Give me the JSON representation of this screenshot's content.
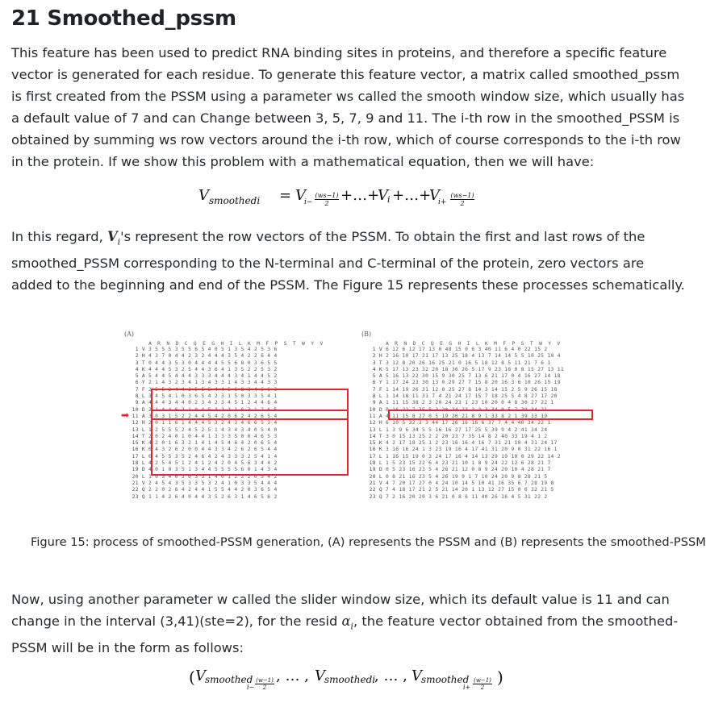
{
  "section": {
    "title": "21 Smoothed_pssm"
  },
  "paragraphs": {
    "p1": "This feature has been used to predict RNA binding sites in proteins, and therefore a specific feature vector is generated for each residue. To generate this feature vector, a matrix called smoothed_pssm is first created from the PSSM using a parameter ws called the smooth window size, which usually has a default value of 7 and can Change between 3, 5, 7, 9 and 11. The i-th row in the smoothed_PSSM is obtained by summing ws row vectors around the i-th row, which of course corresponds to the i-th row in the protein. If we show this problem with a mathematical equation, then we will have:",
    "p2_before": "In this regard, ",
    "p2_var": "V",
    "p2_sub": "i",
    "p2_after": "'s represent the row vectors of the PSSM. To obtain the first and last rows of the smoothed_PSSM corresponding to the N-terminal and C-terminal of the protein, zero vectors are added to the beginning and end of the PSSM. The Figure 15 represents these processes schematically.",
    "p3_before": "Now, using another parameter w called the slider window size, which its default value is 11 and can change in the interval (3,41)(ste=2), for the resid ",
    "p3_var": "α",
    "p3_sub": "i",
    "p3_after": ", the feature vector obtained from the smoothed-PSSM will be in the form as follows:"
  },
  "equation1": {
    "lhs": "V",
    "lhs_sub": "smoothed",
    "lhs_sub_i": "i",
    "eq": "=",
    "term_left": "V",
    "term_left_sub": "i−",
    "frac_num": "(ws−1)",
    "frac_den": "2",
    "dots": "+…+",
    "vi": "V",
    "vi_sub": "i",
    "dots2": "+…+",
    "term_right": "V",
    "term_right_sub": "i+"
  },
  "equation2": {
    "open": "(",
    "v": "V",
    "sub": "smoothed",
    "sub_left": "i−",
    "frac_num": "(w−1)",
    "frac_den": "2",
    "sep": ", … ,",
    "mid_sub": "smoothed",
    "mid_sub_i": "i",
    "sub_right": "i+",
    "close": ")"
  },
  "figure": {
    "label_a": "(A)",
    "label_b": "(B)",
    "caption": "Figure 15: process of smoothed-PSSM generation, (A) represents the PSSM and (B) represents the smoothed-PSSM",
    "header_a": "A R N D C Q E G H I L K M F P S T W Y V",
    "header_b": "A R N D C Q E G H I L K M F P S T W Y V",
    "row_labels": [
      "1 V",
      "2 H",
      "3 T",
      "4 K",
      "5 A",
      "6 Y",
      "7 F",
      "8 L",
      "9 A",
      "10 D",
      "11 A",
      "12 H",
      "13 L",
      "14 T",
      "15 K",
      "16 K",
      "17 L",
      "18 L",
      "19 D",
      "20 L",
      "21 V",
      "22 Q",
      "23 Q"
    ],
    "rows_a": [
      "3 5 5 5 3 5 5 6 5 4 0 5 1 3 5 4 2 5 3 6",
      "4 3 7 0 4 4 2 3 2 4 4 4 3 5 4 2 2 6 4 4",
      "0 4 4 3 5 3 0 4 4 4 4 5 5 6 8 0 3 6 5 5",
      "4 4 4 5 3 2 5 4 4 3 6 4 1 3 5 2 2 5 3 2",
      "5 4 4 5 4 4 4 3 3 3 4 4 4 3 4 1 4 4 5 2",
      "2 1 4 3 2 3 4 1 3 4 3 3 1 4 3 3 4 4 3 3",
      "2 5 5 3 4 4 2 5 5 5 4 4 5 6 8 3 4 6 6 3",
      "3 4 5 4 1 0 3 6 5 4 2 3 1 5 0 3 3 5 4 1",
      "4 4 4 3 4 4 0 2 3 4 2 3 4 5 1 2 4 4 6 4",
      "2 1 4 4 6 2 1 0 4 5 4 2 2 1 6 3 1 2 6 5",
      "3 0 3 1 5 2 2 4 4 5 4 2 0 6 2 4 2 6 5 4",
      "2 0 1 1 6 1 4 4 4 5 3 2 4 3 4 6 6 5 3 4",
      "1 2 5 5 5 2 4 5 2 5 1 4 3 4 3 4 0 5 4 0",
      "2 0 2 4 0 1 0 4 4 1 3 3 3 5 0 0 4 6 5 3",
      "4 2 0 1 6 3 2 1 4 1 4 5 4 6 4 2 0 6 5 4",
      "0 4 3 2 6 2 0 0 4 4 3 3 4 2 6 2 6 5 4 4",
      "0 4 5 5 3 5 2 4 6 4 2 4 3 3 3 2 5 4 1 4",
      "4 2 5 4 5 1 2 4 1 2 4 2 0 4 5 6 3 4 4 2",
      "4 0 1 0 3 5 1 3 4 4 5 5 5 5 6 0 1 4 3 4",
      "1 0 5 4 0 3 0 3 3 1 4 0 1 2 2 2 0 3 4 2",
      "2 4 5 4 3 5 3 3 5 3 2 4 1 0 3 3 5 4 4 4",
      "2 2 0 2 6 4 2 4 4 1 5 5 4 4 2 0 3 6 5 4",
      "1 1 4 2 6 4 0 4 4 3 5 2 6 3 1 4 6 5 6 2"
    ],
    "rows_b": [
      "6 12 6 12 17 13 0 48 15 0 6 3 40 11 6 4 0 22 15 2",
      "2 16 10 17 21 17 13 25 18 4 13 7 14 14 5 5 10 25 10 4",
      "3 12 8 20 26 16 25 21 0 16 5 18 12 8 5 11 21 7 6 1",
      "5 17 13 23 32 20 18 36 26 5 17 9 23 18 0 8 15 27 13 11",
      "5 16 13 22 30 15 9 30 25 7 13 6 21 17 0 4 16 27 14 18",
      "1 17 24 23 30 13 0 29 27 7 15 8 20 16 3 6 10 26 15 19",
      "1 14 19 26 31 12 8 25 27 8 14 3 14 15 2 5 9 26 15 18",
      "1 14 18 11 31 7 4 21 24 17 15 7 18 25 5 4 8 27 17 20",
      "1 11 15 38 2 3 20 24 23 1 23 10 20 0 4 8 30 27 22 1",
      "0 16 22 7 35 5 3 20 24 23 2 2 3 34 0 5 7 39 34 21",
      "4 11 15 8 27 0 5 19 20 21 8 9 1 33 8 2 1 39 33 19",
      "6 10 5 32 3 3 44 17 26 16 16 6 37 7 4 4 40 34 22 1",
      "1 3 9 6 34 5 5 16 16 27 17 25 5 39 9 4 2 41 34 24",
      "3 0 15 13 25 2 2 20 23 7 35 14 8 2 40 33 19 4 1 2",
      "4 2 17 18 25 1 2 23 16 16 4 16 7 31 21 10 4 31 24 17",
      "3 16 16 24 1 3 23 19 16 4 17 41 31 20 9 0 31 22 16 1",
      "1 16 15 19 0 3 24 17 16 4 14 13 29 19 10 0 29 22 14 2",
      "1 5 23 15 22 6 4 23 21 10 1 8 9 24 22 12 6 28 21 7",
      "0 5 23 16 23 5 4 26 21 12 0 8 9 24 20 10 4 28 21 7",
      "0 8 21 16 23 5 4 26 19 9 1 7 10 24 20 9 8 28 21 5",
      "4 7 20 17 27 0 4 24 10 14 5 10 41 26 35 6 7 28 19 8",
      "7 4 18 17 21 2 5 21 14 20 1 13 12 27 15 0 6 32 21 5",
      "7 2 16 20 20 3 6 21 0 8 6 11 40 26 16 4 5 31 22 2"
    ]
  }
}
